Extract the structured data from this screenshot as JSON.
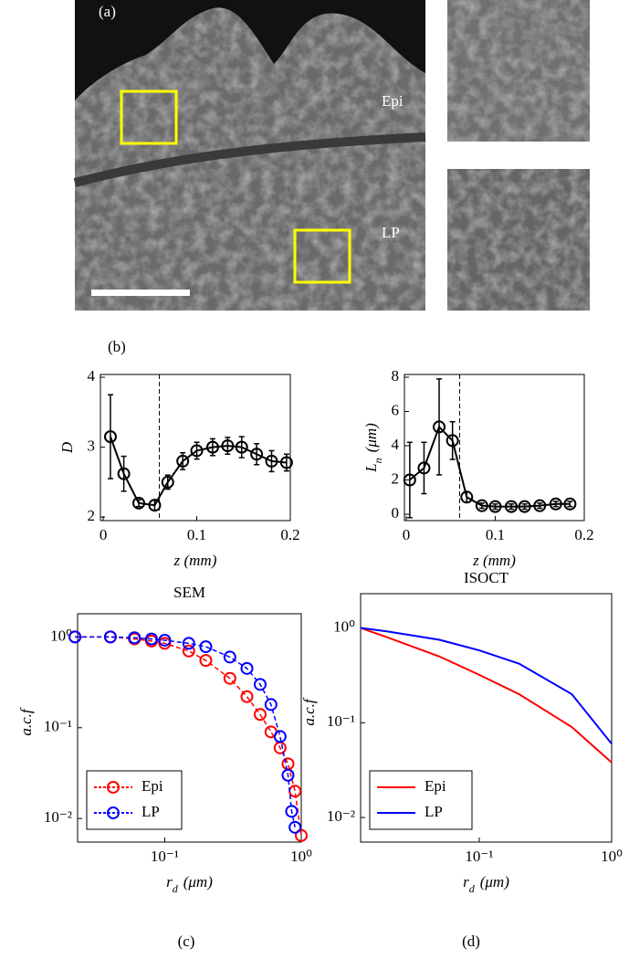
{
  "image": {
    "label": "(a)",
    "regions": [
      "Epi",
      "LP"
    ]
  },
  "panel_labels": [
    "(b)",
    "(c)",
    "(d)"
  ],
  "chart_data": [
    {
      "type": "line",
      "ylabel": "D",
      "xlabel": "z (mm)",
      "x": [
        0.0077,
        0.022,
        0.038,
        0.055,
        0.069,
        0.085,
        0.1,
        0.117,
        0.133,
        0.148,
        0.164,
        0.18,
        0.196
      ],
      "series": [
        {
          "color": "#000000",
          "values": [
            3.15,
            2.62,
            2.2,
            2.17,
            2.5,
            2.8,
            2.95,
            3.0,
            3.02,
            3.0,
            2.9,
            2.8,
            2.78
          ],
          "errors": [
            0.6,
            0.25,
            0.05,
            0.07,
            0.1,
            0.12,
            0.12,
            0.12,
            0.12,
            0.15,
            0.15,
            0.15,
            0.12
          ]
        }
      ],
      "vline": 0.06,
      "xlim": [
        -0.003,
        0.2
      ],
      "ylim": [
        1.95,
        4.04
      ],
      "xticks": [
        0,
        0.1,
        0.2
      ],
      "yticks": [
        2,
        3,
        4
      ]
    },
    {
      "type": "line",
      "ylabel": "L",
      "ylabel_sub": "n",
      "ylabel_unit": "(μm)",
      "xlabel": "z (mm)",
      "x": [
        0.004,
        0.02,
        0.037,
        0.052,
        0.068,
        0.085,
        0.1,
        0.118,
        0.133,
        0.15,
        0.168,
        0.184
      ],
      "series": [
        {
          "color": "#000000",
          "values": [
            2.0,
            2.7,
            5.1,
            4.3,
            1.0,
            0.5,
            0.45,
            0.45,
            0.45,
            0.5,
            0.6,
            0.6
          ],
          "errors": [
            2.2,
            1.5,
            2.8,
            1.1,
            0.3,
            0.15,
            0.15,
            0.15,
            0.15,
            0.15,
            0.15,
            0.15
          ]
        }
      ],
      "vline": 0.06,
      "xlim": [
        -0.002,
        0.2
      ],
      "ylim": [
        -0.37,
        8.16
      ],
      "xticks": [
        0,
        0.1,
        0.2
      ],
      "yticks": [
        0,
        2,
        4,
        6,
        8
      ]
    },
    {
      "type": "scatter",
      "title": "SEM",
      "ylabel": "a.c.f",
      "xlabel": "r",
      "xlabel_sub": "d",
      "xlabel_unit": "(μm)",
      "log": true,
      "legend": "lower-left",
      "series": [
        {
          "name": "Epi",
          "color": "#ff0000",
          "x": [
            0.022,
            0.04,
            0.06,
            0.08,
            0.1,
            0.15,
            0.2,
            0.3,
            0.4,
            0.5,
            0.6,
            0.7,
            0.8,
            0.9,
            1.0
          ],
          "values": [
            1,
            1,
            0.95,
            0.9,
            0.85,
            0.7,
            0.55,
            0.35,
            0.22,
            0.14,
            0.09,
            0.06,
            0.04,
            0.02,
            0.0065
          ]
        },
        {
          "name": "LP",
          "color": "#0000ff",
          "x": [
            0.022,
            0.04,
            0.06,
            0.08,
            0.1,
            0.15,
            0.2,
            0.3,
            0.4,
            0.5,
            0.6,
            0.7,
            0.8,
            0.85,
            0.9
          ],
          "values": [
            1,
            1,
            0.98,
            0.95,
            0.92,
            0.85,
            0.78,
            0.6,
            0.45,
            0.3,
            0.18,
            0.08,
            0.03,
            0.012,
            0.008
          ]
        }
      ],
      "xlim": [
        0.023,
        1.0
      ],
      "ylim": [
        0.0055,
        1.8
      ],
      "xticks": [
        {
          "value": 0.1,
          "label": "10⁻¹"
        },
        {
          "value": 1,
          "label": "10⁰"
        }
      ],
      "yticks": [
        {
          "value": 0.01,
          "label": "10⁻²"
        },
        {
          "value": 0.1,
          "label": "10⁻¹"
        },
        {
          "value": 1,
          "label": "10⁰"
        }
      ]
    },
    {
      "type": "line",
      "title": "ISOCT",
      "ylabel": "a.c.f",
      "xlabel": "r",
      "xlabel_sub": "d",
      "xlabel_unit": "(μm)",
      "log": true,
      "legend": "lower-left",
      "x": [
        0.0127,
        0.02,
        0.05,
        0.1,
        0.2,
        0.5,
        1
      ],
      "series": [
        {
          "name": "Epi",
          "color": "#ff0000",
          "values": [
            1,
            0.8,
            0.5,
            0.32,
            0.2,
            0.09,
            0.038
          ]
        },
        {
          "name": "LP",
          "color": "#0000ff",
          "values": [
            1,
            0.92,
            0.75,
            0.58,
            0.42,
            0.2,
            0.06
          ]
        }
      ],
      "xlim": [
        0.0127,
        1.0
      ],
      "ylim": [
        0.0055,
        2.3
      ],
      "xticks": [
        {
          "value": 0.1,
          "label": "10⁻¹"
        },
        {
          "value": 1,
          "label": "10⁰"
        }
      ],
      "yticks": [
        {
          "value": 0.01,
          "label": "10⁻²"
        },
        {
          "value": 0.1,
          "label": "10⁻¹"
        },
        {
          "value": 1,
          "label": "10⁰"
        }
      ]
    }
  ]
}
